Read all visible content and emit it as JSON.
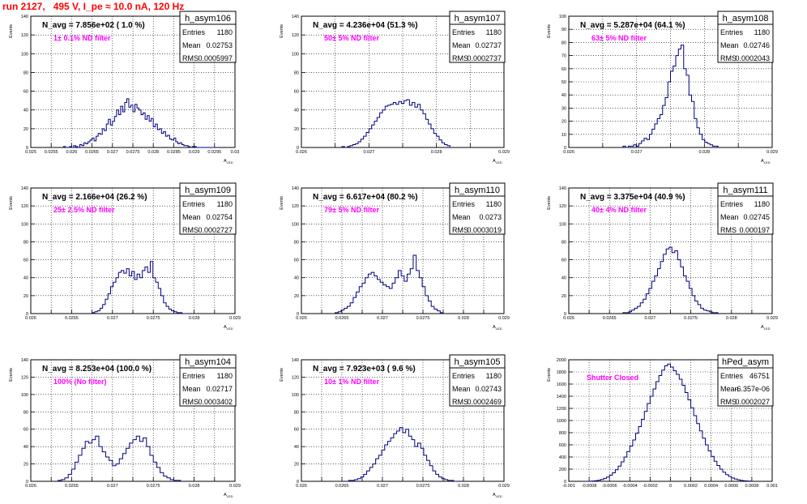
{
  "page": {
    "title": "run 2127,   495 V, I_pe ≈ 10.0 nA, 120 Hz",
    "colors": {
      "title": "#ff0000",
      "histogram_line": "#000080",
      "annotation": "#ff00ff",
      "grid": "#000000"
    }
  },
  "chart_data": [
    {
      "type": "histogram",
      "name": "h_asym106",
      "navg": "N_avg = 7.856e+02 ( 1.0 %)",
      "filter": "1± 0.1% ND filter",
      "ylabel": "Events",
      "xlabel": "A",
      "stats": {
        "entries": "1180",
        "mean": "0.02753",
        "rms": "0.0005997"
      },
      "xlim": [
        0.025,
        0.03
      ],
      "ylim": [
        0,
        140
      ],
      "xticks": [
        "0.025",
        "0.0255",
        "0.026",
        "0.0265",
        "0.027",
        "0.0275",
        "0.028",
        "0.0285",
        "0.029",
        "0.0295",
        "0.03"
      ],
      "yticks": [
        "0",
        "20",
        "40",
        "60",
        "80",
        "100",
        "120",
        "140"
      ],
      "bin_range": [
        0.0258,
        0.0296
      ],
      "values": [
        1,
        0,
        0,
        1,
        0,
        2,
        1,
        0,
        3,
        2,
        5,
        4,
        6,
        8,
        10,
        7,
        12,
        15,
        14,
        20,
        18,
        25,
        30,
        24,
        28,
        33,
        40,
        35,
        44,
        38,
        48,
        52,
        43,
        45,
        38,
        46,
        42,
        40,
        35,
        37,
        30,
        34,
        28,
        31,
        22,
        25,
        19,
        20,
        15,
        17,
        12,
        13,
        9,
        8,
        10,
        6,
        4,
        5,
        3,
        2,
        2,
        1,
        0,
        1,
        1,
        0,
        0,
        0,
        0,
        0,
        0,
        0,
        0,
        0,
        0,
        0
      ]
    },
    {
      "type": "histogram",
      "name": "h_asym107",
      "navg": "N_avg = 4.236e+04 (51.3 %)",
      "filter": "50± 5% ND filter",
      "ylabel": "Events",
      "xlabel": "A",
      "stats": {
        "entries": "1180",
        "mean": "0.02737",
        "rms": "0.0002737"
      },
      "xlim": [
        0.026,
        0.029
      ],
      "ylim": [
        0,
        140
      ],
      "xticks": [
        "0.026",
        "",
        "0.027",
        "",
        "0.028",
        "",
        "0.029"
      ],
      "yticks": [
        "0",
        "20",
        "40",
        "60",
        "80",
        "100",
        "120",
        "140"
      ],
      "bin_range": [
        0.0266,
        0.0282
      ],
      "values": [
        1,
        0,
        1,
        2,
        3,
        4,
        6,
        9,
        12,
        16,
        20,
        24,
        28,
        32,
        37,
        40,
        44,
        45,
        46,
        48,
        46,
        49,
        47,
        50,
        51,
        45,
        48,
        43,
        46,
        40,
        36,
        30,
        25,
        20,
        15,
        12,
        8,
        5,
        3,
        2
      ]
    },
    {
      "type": "histogram",
      "name": "h_asym108",
      "navg": "N_avg = 5.287e+04 (64.1 %)",
      "filter": "63± 5% ND filter",
      "ylabel": "Events",
      "xlabel": "A",
      "stats": {
        "entries": "1180",
        "mean": "0.02746",
        "rms": "0.0002043"
      },
      "xlim": [
        0.026,
        0.029
      ],
      "ylim": [
        0,
        100
      ],
      "xticks": [
        "0.026",
        "",
        "0.027",
        "",
        "0.028",
        "",
        "0.029"
      ],
      "yticks": [
        "0",
        "10",
        "20",
        "30",
        "40",
        "50",
        "60",
        "70",
        "80",
        "90",
        "100"
      ],
      "bin_range": [
        0.0268,
        0.0282
      ],
      "values": [
        1,
        0,
        1,
        1,
        2,
        1,
        3,
        5,
        7,
        6,
        10,
        14,
        18,
        22,
        25,
        32,
        38,
        50,
        58,
        62,
        70,
        75,
        78,
        60,
        55,
        40,
        35,
        22,
        15,
        10,
        6,
        4,
        3,
        2,
        1,
        1
      ]
    },
    {
      "type": "histogram",
      "name": "h_asym109",
      "navg": "N_avg = 2.166e+04 (26.2 %)",
      "filter": "25± 2.5% ND filter",
      "ylabel": "Events",
      "xlabel": "A",
      "stats": {
        "entries": "1180",
        "mean": "0.02754",
        "rms": "0.0002727"
      },
      "xlim": [
        0.026,
        0.029
      ],
      "ylim": [
        0,
        140
      ],
      "xticks": [
        "0.026",
        "",
        "0.0265",
        "",
        "0.027",
        "",
        "0.0275",
        "",
        "0.028",
        "",
        "0.029"
      ],
      "yticks": [
        "0",
        "20",
        "40",
        "60",
        "80",
        "100",
        "120",
        "140"
      ],
      "bin_range": [
        0.0269,
        0.0283
      ],
      "values": [
        1,
        2,
        3,
        6,
        10,
        16,
        22,
        30,
        35,
        40,
        46,
        48,
        45,
        50,
        42,
        47,
        38,
        44,
        40,
        48,
        52,
        46,
        58,
        40,
        35,
        28,
        20,
        12,
        8,
        5,
        3,
        2,
        1,
        1,
        0,
        0
      ]
    },
    {
      "type": "histogram",
      "name": "h_asym110",
      "navg": "N_avg = 6.617e+04 (80.2 %)",
      "filter": "79± 5% ND filter",
      "ylabel": "Events",
      "xlabel": "A",
      "stats": {
        "entries": "1180",
        "mean": "0.0273",
        "rms": "0.0003019"
      },
      "xlim": [
        0.026,
        0.029
      ],
      "ylim": [
        0,
        140
      ],
      "xticks": [
        "0.026",
        "",
        "0.0265",
        "",
        "0.027",
        "",
        "0.0275",
        "",
        "0.028",
        "",
        "0.029"
      ],
      "yticks": [
        "0",
        "20",
        "40",
        "60",
        "80",
        "100",
        "120",
        "140"
      ],
      "bin_range": [
        0.0265,
        0.0281
      ],
      "values": [
        1,
        2,
        4,
        6,
        8,
        12,
        18,
        24,
        30,
        34,
        40,
        44,
        46,
        42,
        38,
        35,
        32,
        30,
        28,
        34,
        40,
        48,
        42,
        36,
        44,
        50,
        65,
        48,
        40,
        30,
        20,
        14,
        8,
        5,
        3,
        1
      ]
    },
    {
      "type": "histogram",
      "name": "h_asym111",
      "navg": "N_avg = 3.375e+04 (40.9 %)",
      "filter": "40± 4% ND filter",
      "ylabel": "Events",
      "xlabel": "A",
      "stats": {
        "entries": "1180",
        "mean": "0.02745",
        "rms": "0.000197"
      },
      "xlim": [
        0.026,
        0.029
      ],
      "ylim": [
        0,
        140
      ],
      "xticks": [
        "0.026",
        "",
        "0.0265",
        "",
        "0.027",
        "",
        "0.0275",
        "",
        "0.028",
        "",
        "0.029"
      ],
      "yticks": [
        "0",
        "20",
        "40",
        "60",
        "80",
        "100",
        "120",
        "140"
      ],
      "bin_range": [
        0.0268,
        0.0282
      ],
      "values": [
        1,
        1,
        2,
        4,
        6,
        8,
        12,
        16,
        22,
        28,
        36,
        42,
        50,
        58,
        66,
        72,
        74,
        68,
        70,
        60,
        52,
        42,
        36,
        28,
        20,
        14,
        10,
        6,
        4,
        3,
        2,
        1,
        1
      ]
    },
    {
      "type": "histogram",
      "name": "h_asym104",
      "navg": "N_avg = 8.253e+04 (100.0 %)",
      "filter": "100% (No filter)",
      "ylabel": "Events",
      "xlabel": "A",
      "stats": {
        "entries": "1180",
        "mean": "0.02717",
        "rms": "0.0003402"
      },
      "xlim": [
        0.026,
        0.029
      ],
      "ylim": [
        0,
        140
      ],
      "xticks": [
        "0.026",
        "",
        "0.0265",
        "",
        "0.027",
        "",
        "0.0275",
        "",
        "0.028",
        "",
        "0.029"
      ],
      "yticks": [
        "0",
        "20",
        "40",
        "60",
        "80",
        "100",
        "120",
        "140"
      ],
      "bin_range": [
        0.0264,
        0.0282
      ],
      "values": [
        1,
        2,
        4,
        8,
        14,
        22,
        30,
        38,
        46,
        44,
        48,
        52,
        40,
        34,
        28,
        24,
        18,
        20,
        26,
        32,
        38,
        44,
        48,
        52,
        46,
        50,
        40,
        30,
        22,
        16,
        10,
        6,
        4,
        2,
        1,
        1
      ]
    },
    {
      "type": "histogram",
      "name": "h_asym105",
      "navg": "N_avg = 7.923e+03 ( 9.6 %)",
      "filter": "10± 1% ND filter",
      "ylabel": "Events",
      "xlabel": "A",
      "stats": {
        "entries": "1180",
        "mean": "0.02743",
        "rms": "0.0002469"
      },
      "xlim": [
        0.026,
        0.029
      ],
      "ylim": [
        0,
        140
      ],
      "xticks": [
        "0.026",
        "",
        "0.0265",
        "",
        "0.027",
        "",
        "0.0275",
        "",
        "0.028",
        "",
        "0.029"
      ],
      "yticks": [
        "0",
        "20",
        "40",
        "60",
        "80",
        "100",
        "120",
        "140"
      ],
      "bin_range": [
        0.0267,
        0.0283
      ],
      "values": [
        1,
        1,
        2,
        3,
        5,
        8,
        12,
        16,
        20,
        26,
        30,
        36,
        42,
        46,
        50,
        55,
        58,
        62,
        56,
        60,
        52,
        48,
        40,
        44,
        38,
        30,
        24,
        18,
        12,
        8,
        5,
        3,
        2,
        1,
        1,
        0
      ]
    },
    {
      "type": "histogram",
      "name": "hPed_asym",
      "navg": "",
      "filter": "Shutter Closed",
      "ylabel": "Events",
      "xlabel": "",
      "stats": {
        "entries": "46751",
        "mean": "-6.357e-06",
        "rms": "0.0002027"
      },
      "xlim": [
        -0.001,
        0.001
      ],
      "ylim": [
        0,
        2000
      ],
      "xticks": [
        "-0.001",
        "-0.0008",
        "-0.0006",
        "-0.0004",
        "-0.0002",
        "0",
        "0.0002",
        "0.0004",
        "0.0006",
        "0.0008",
        "0.001"
      ],
      "yticks": [
        "0",
        "200",
        "400",
        "600",
        "800",
        "1000",
        "1200",
        "1400",
        "1600",
        "1800",
        "2000"
      ],
      "bin_range": [
        -0.0008,
        0.0008
      ],
      "values": [
        2,
        5,
        10,
        18,
        30,
        48,
        70,
        100,
        140,
        190,
        250,
        320,
        400,
        490,
        580,
        680,
        790,
        900,
        1020,
        1150,
        1280,
        1400,
        1520,
        1640,
        1740,
        1830,
        1900,
        1930,
        1880,
        1820,
        1760,
        1680,
        1580,
        1460,
        1340,
        1210,
        1080,
        950,
        830,
        710,
        600,
        500,
        410,
        330,
        260,
        200,
        150,
        110,
        80,
        55,
        38,
        25,
        15,
        9,
        5,
        3
      ]
    }
  ]
}
